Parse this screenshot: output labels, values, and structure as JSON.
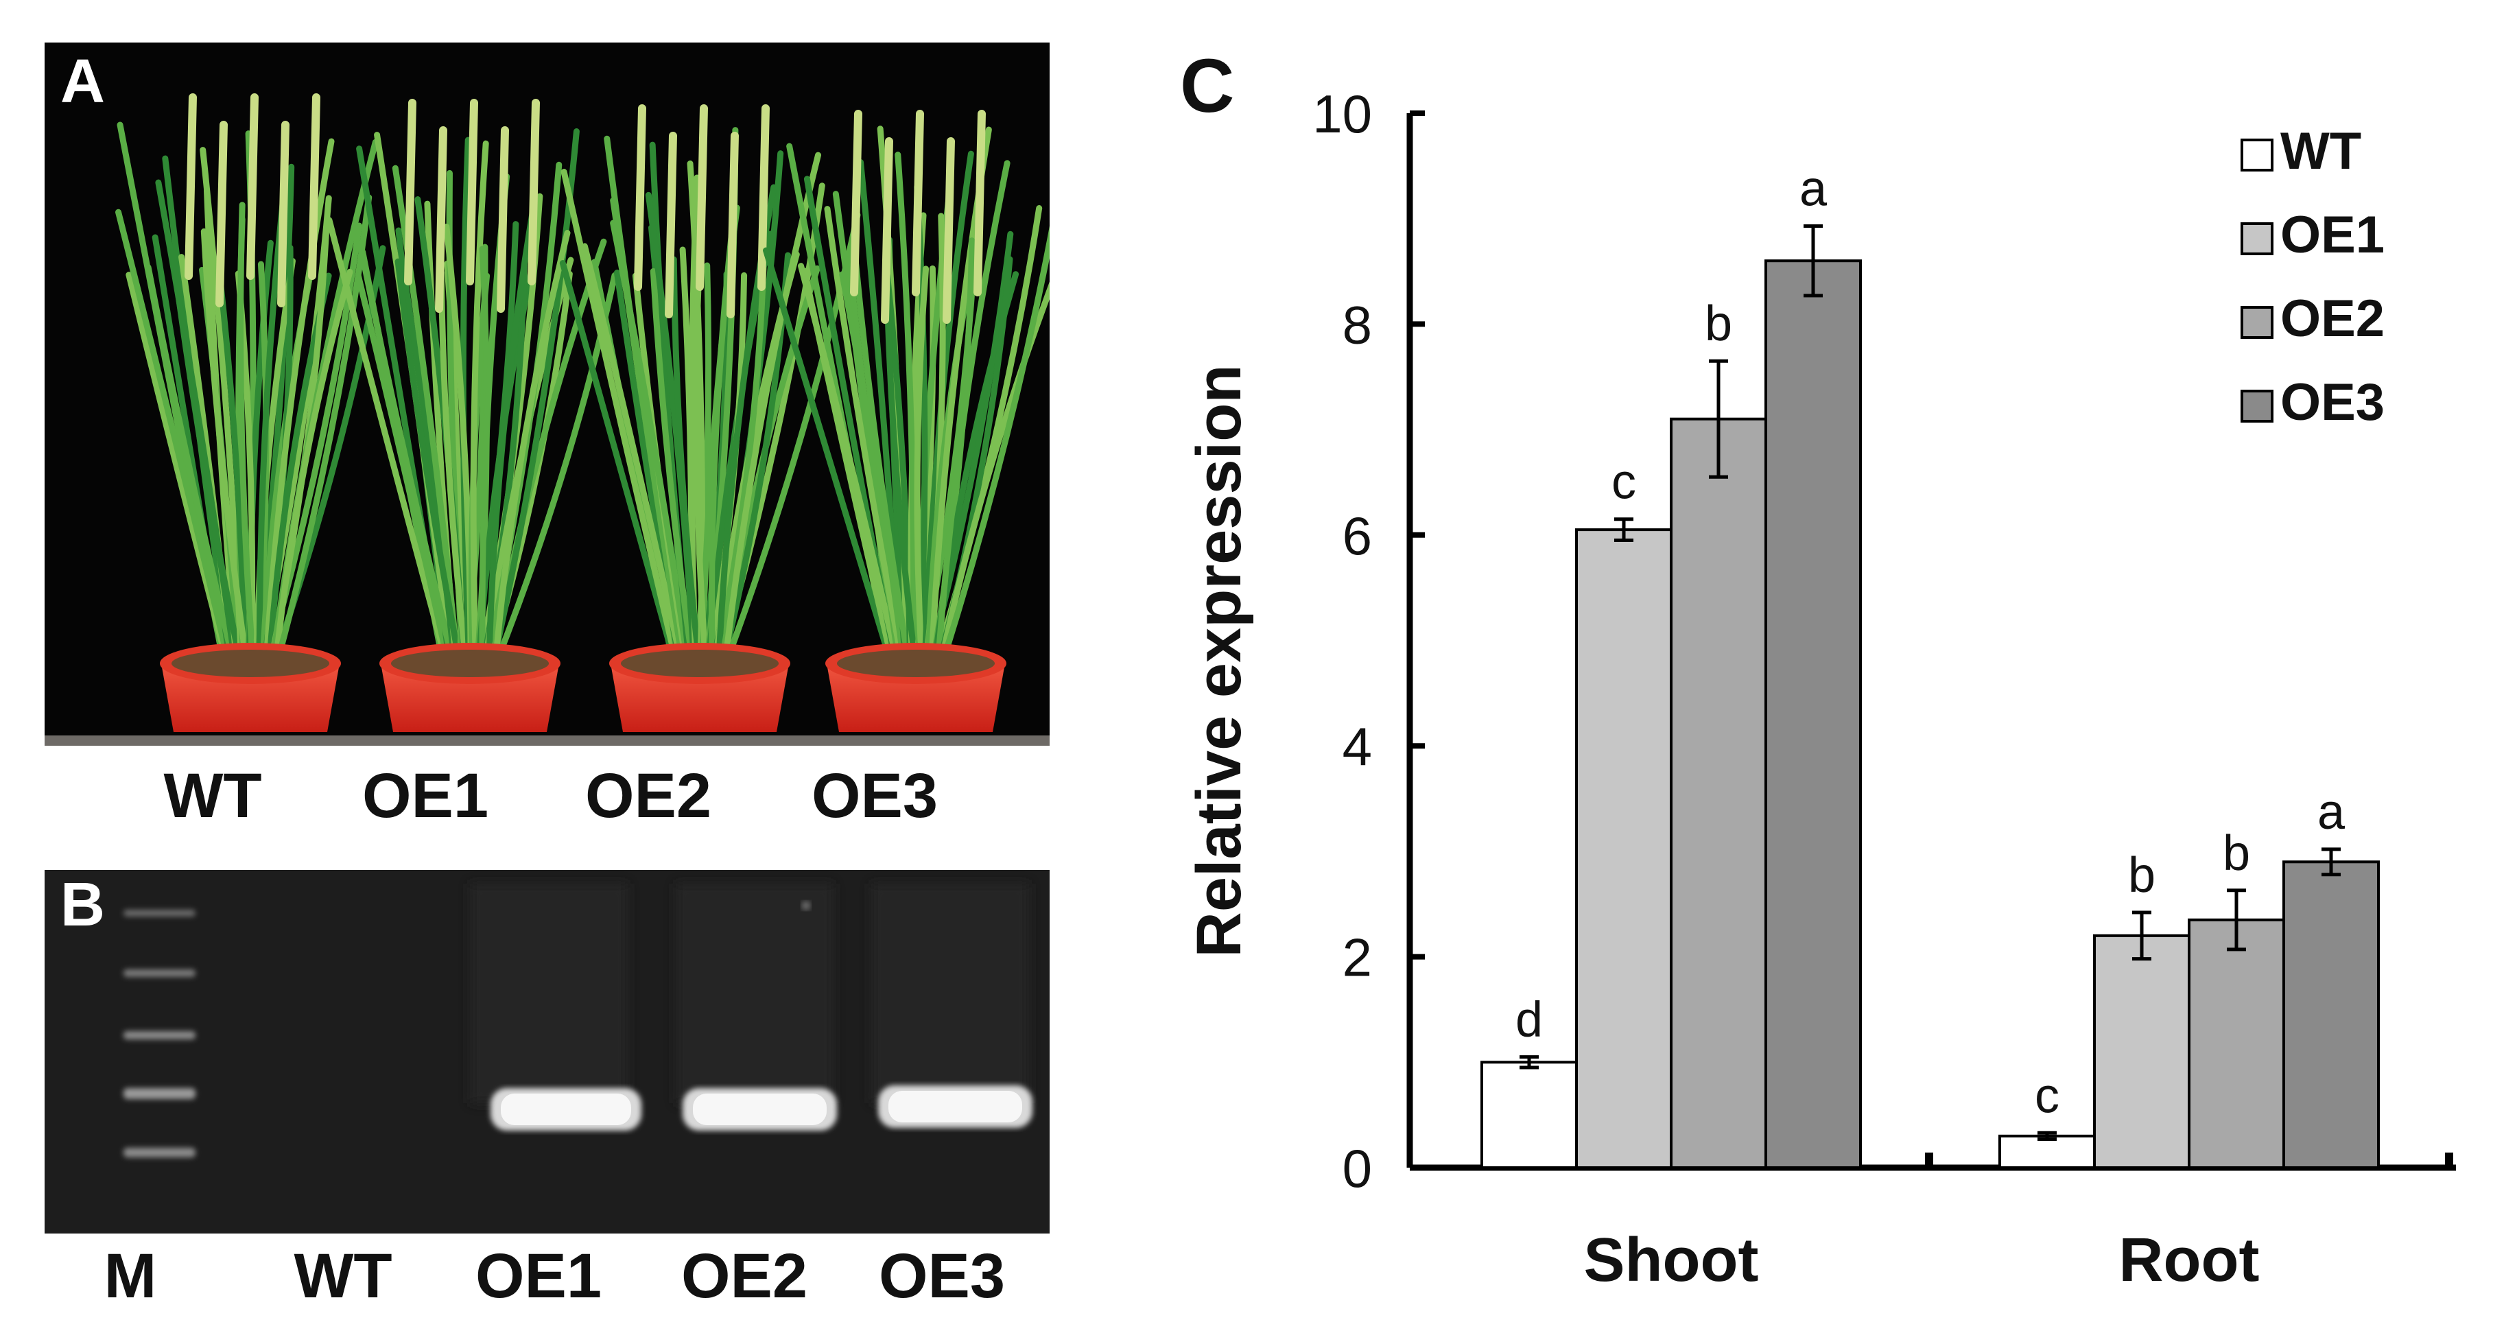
{
  "panel_a": {
    "letter": "A",
    "labels": [
      "WT",
      "OE1",
      "OE2",
      "OE3"
    ]
  },
  "panel_b": {
    "letter": "B",
    "labels": [
      "M",
      "WT",
      "OE1",
      "OE2",
      "OE3"
    ],
    "band_present": [
      false,
      false,
      true,
      true,
      true
    ]
  },
  "panel_c": {
    "letter": "C"
  },
  "chart_data": {
    "type": "bar",
    "title": "",
    "xlabel": "",
    "ylabel": "Relative expression",
    "ylim": [
      0,
      10
    ],
    "yticks": [
      "0",
      "2",
      "4",
      "6",
      "8",
      "10"
    ],
    "categories": [
      "Shoot",
      "Root"
    ],
    "legend_position": "top-right",
    "series": [
      {
        "name": "WT",
        "color": "#ffffff",
        "values": [
          1.0,
          0.3
        ],
        "errors": [
          0.05,
          0.03
        ],
        "letters": [
          "d",
          "c"
        ]
      },
      {
        "name": "OE1",
        "color": "#c6c6c6",
        "values": [
          6.05,
          2.2
        ],
        "errors": [
          0.1,
          0.22
        ],
        "letters": [
          "c",
          "b"
        ]
      },
      {
        "name": "OE2",
        "color": "#a8a8a8",
        "values": [
          7.1,
          2.35
        ],
        "errors": [
          0.55,
          0.28
        ],
        "letters": [
          "b",
          "b"
        ]
      },
      {
        "name": "OE3",
        "color": "#8a8a8a",
        "values": [
          8.6,
          2.9
        ],
        "errors": [
          0.33,
          0.12
        ],
        "letters": [
          "a",
          "a"
        ]
      }
    ]
  }
}
